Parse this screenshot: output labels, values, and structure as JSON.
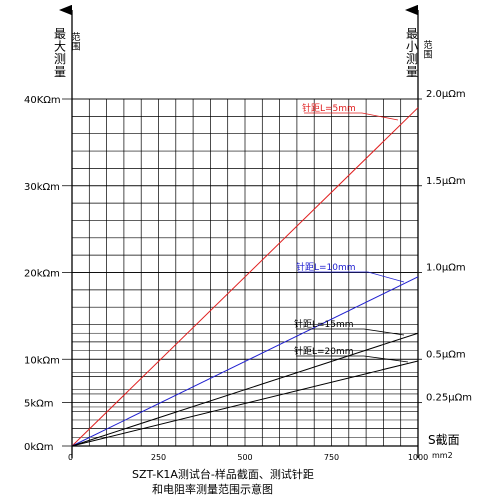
{
  "chart_data": {
    "type": "line",
    "title": "SZT-K1A测试台-样品截面、测试针距",
    "subtitle": "和电阻率测量范围示意图",
    "y_left_label": "最大测量范围",
    "y_right_label": "最小测量范围",
    "x_label": "S截面",
    "x_unit": "mm2",
    "x_range": [
      0,
      1000
    ],
    "y_range_kohm": [
      0,
      40
    ],
    "x_ticks": [
      {
        "value": 0,
        "label": "0"
      },
      {
        "value": 250,
        "label": "250"
      },
      {
        "value": 500,
        "label": "500"
      },
      {
        "value": 750,
        "label": "750"
      },
      {
        "value": 1000,
        "label": "1000"
      }
    ],
    "y_left_ticks": [
      {
        "value": 0,
        "label": "0kΩm"
      },
      {
        "value": 5,
        "label": "5kΩm"
      },
      {
        "value": 10,
        "label": "10kΩm"
      },
      {
        "value": 20,
        "label": "20kΩm"
      },
      {
        "value": 30,
        "label": "30kΩm"
      },
      {
        "value": 40,
        "label": "40KΩm"
      }
    ],
    "y_right_ticks": [
      {
        "value": 5,
        "label": "0.25μΩm"
      },
      {
        "value": 10,
        "label": "0.5μΩm"
      },
      {
        "value": 20,
        "label": "1.0μΩm"
      },
      {
        "value": 30,
        "label": "1.5μΩm"
      },
      {
        "value": 40,
        "label": "2.0μΩm"
      }
    ],
    "series": [
      {
        "name": "针距L=5mm",
        "color": "#e02020",
        "x": [
          0,
          1000
        ],
        "y": [
          0,
          39
        ]
      },
      {
        "name": "针距L=10mm",
        "color": "#2020d0",
        "x": [
          0,
          1000
        ],
        "y": [
          0,
          19.5
        ]
      },
      {
        "name": "针距L=15mm",
        "color": "#000000",
        "x": [
          0,
          1000
        ],
        "y": [
          0,
          13
        ]
      },
      {
        "name": "针距L=20mm",
        "color": "#000000",
        "x": [
          0,
          1000
        ],
        "y": [
          0,
          9.8
        ]
      }
    ]
  }
}
